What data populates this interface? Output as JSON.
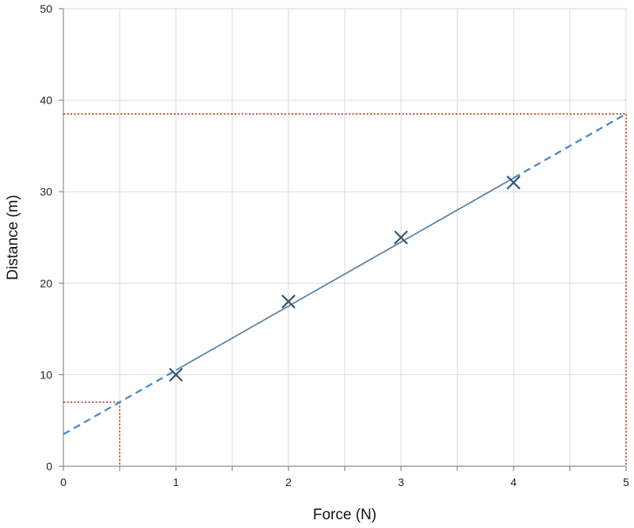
{
  "chart_data": {
    "type": "scatter",
    "xlabel": "Force (N)",
    "ylabel": "Distance (m)",
    "xlim": [
      0,
      5
    ],
    "ylim": [
      0,
      50
    ],
    "x_ticks": [
      0,
      1,
      2,
      3,
      4,
      5
    ],
    "y_ticks": [
      0,
      10,
      20,
      30,
      40,
      50
    ],
    "x_minor_step": 0.5,
    "grid": true,
    "series": [
      {
        "marker": "x",
        "x": [
          1,
          2,
          3,
          4
        ],
        "y": [
          10,
          18,
          25,
          31
        ]
      }
    ],
    "fit_line": {
      "slope": 7,
      "intercept": 3.5,
      "solid_range": [
        1,
        4
      ],
      "dashed_extrapolation": [
        [
          0,
          1
        ],
        [
          4,
          5
        ]
      ]
    },
    "reference_lines": [
      {
        "x": 0.5,
        "y": 7
      },
      {
        "x": 5,
        "y": 38.5
      }
    ],
    "colors": {
      "marker": "#2e5474",
      "fit_solid": "#5b84a4",
      "fit_dashed": "#4f8bc9",
      "reference": "#e0201c",
      "grid": "#d9d9d9",
      "axis": "#8c8c8c"
    }
  }
}
